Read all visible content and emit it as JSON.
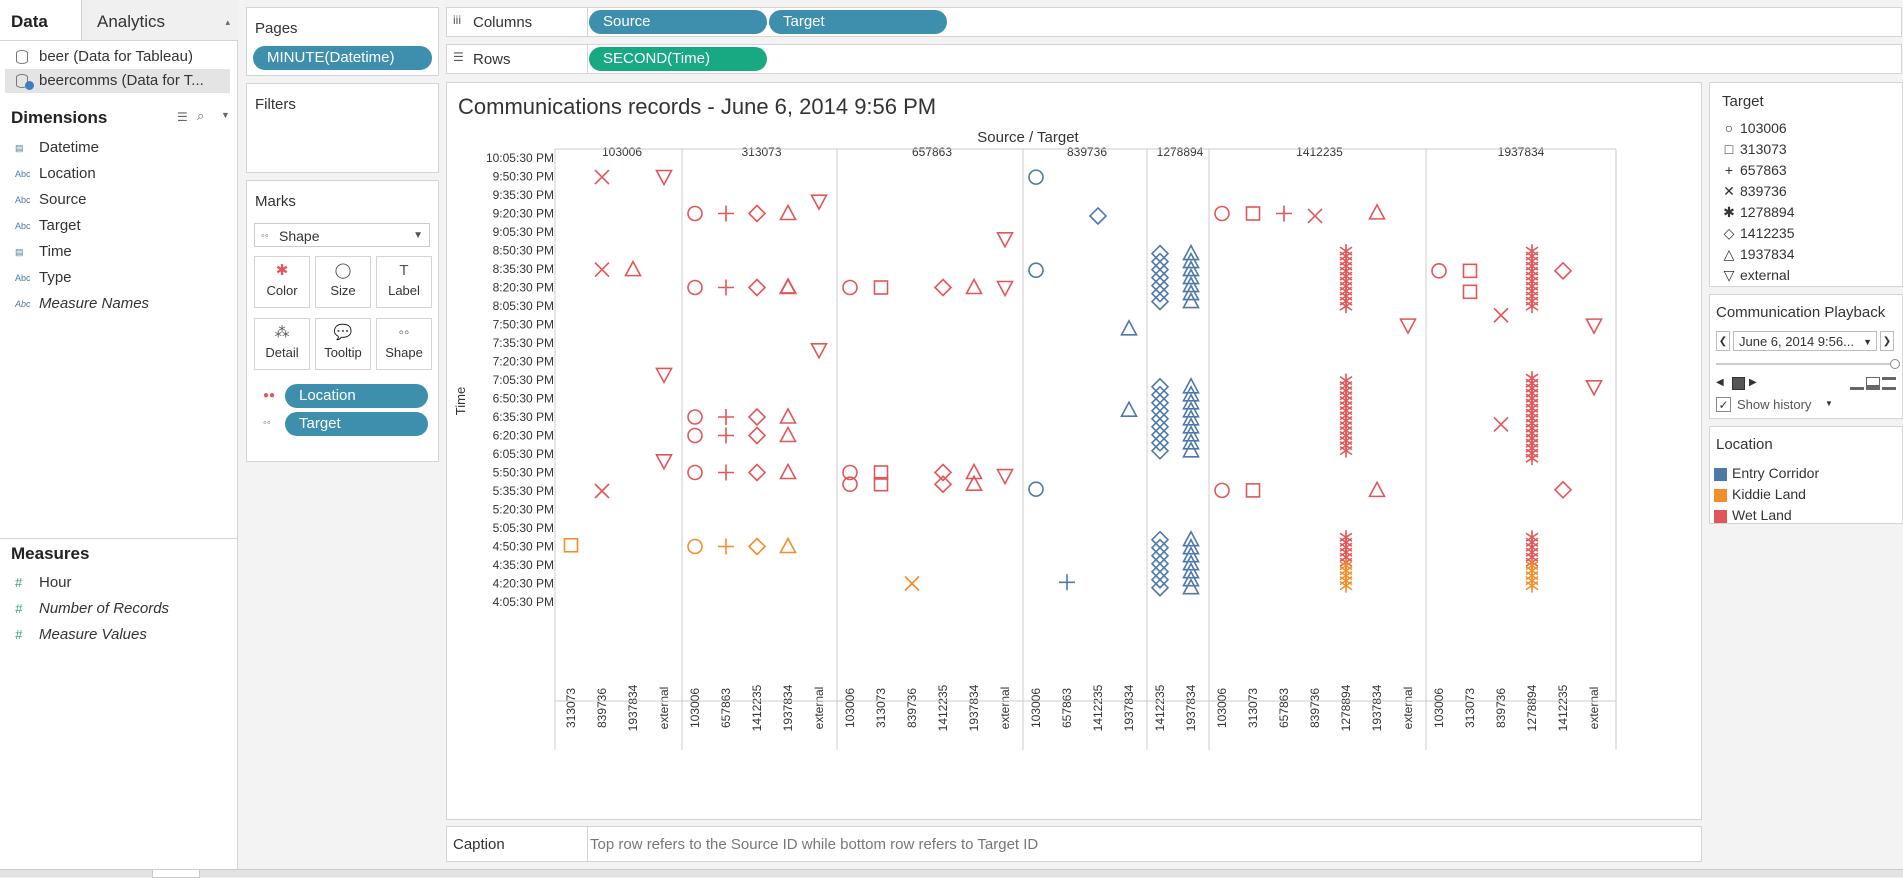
{
  "tabs": {
    "data": "Data",
    "analytics": "Analytics"
  },
  "datasources": [
    "beer (Data for Tableau)",
    "beercomms (Data for T..."
  ],
  "dimensions": {
    "title": "Dimensions",
    "items": [
      {
        "label": "Datetime",
        "type": "date",
        "italic": false
      },
      {
        "label": "Location",
        "type": "abc",
        "italic": false
      },
      {
        "label": "Source",
        "type": "abc",
        "italic": false
      },
      {
        "label": "Target",
        "type": "abc",
        "italic": false
      },
      {
        "label": "Time",
        "type": "date",
        "italic": false
      },
      {
        "label": "Type",
        "type": "abc",
        "italic": false
      },
      {
        "label": "Measure Names",
        "type": "abc",
        "italic": true
      }
    ]
  },
  "measures": {
    "title": "Measures",
    "items": [
      {
        "label": "Hour",
        "italic": false
      },
      {
        "label": "Number of Records",
        "italic": true
      },
      {
        "label": "Measure Values",
        "italic": true
      }
    ]
  },
  "pages": {
    "title": "Pages",
    "pill": "MINUTE(Datetime)"
  },
  "filters": {
    "title": "Filters"
  },
  "marks": {
    "title": "Marks",
    "type": "Shape",
    "buttons": [
      "Color",
      "Size",
      "Label",
      "Detail",
      "Tooltip",
      "Shape"
    ],
    "pills": [
      "Location",
      "Target"
    ]
  },
  "columns": {
    "label": "Columns",
    "pills": [
      "Source",
      "Target"
    ]
  },
  "rows": {
    "label": "Rows",
    "pills": [
      "SECOND(Time)"
    ]
  },
  "chart_data": {
    "type": "scatter",
    "title": "Communications records - June 6, 2014 9:56 PM",
    "column_header": "Source / Target",
    "ylabel": "Time",
    "y_ticks": [
      "10:05:30 PM",
      "9:50:30 PM",
      "9:35:30 PM",
      "9:20:30 PM",
      "9:05:30 PM",
      "8:50:30 PM",
      "8:35:30 PM",
      "8:20:30 PM",
      "8:05:30 PM",
      "7:50:30 PM",
      "7:35:30 PM",
      "7:20:30 PM",
      "7:05:30 PM",
      "6:50:30 PM",
      "6:35:30 PM",
      "6:20:30 PM",
      "6:05:30 PM",
      "5:50:30 PM",
      "5:35:30 PM",
      "5:20:30 PM",
      "5:05:30 PM",
      "4:50:30 PM",
      "4:35:30 PM",
      "4:20:30 PM",
      "4:05:30 PM"
    ],
    "sources": [
      {
        "name": "103006",
        "targets": [
          "313073",
          "839736",
          "1937834",
          "external"
        ]
      },
      {
        "name": "313073",
        "targets": [
          "103006",
          "657863",
          "1412235",
          "1937834",
          "external"
        ]
      },
      {
        "name": "657863",
        "targets": [
          "103006",
          "313073",
          "839736",
          "1412235",
          "1937834",
          "external"
        ]
      },
      {
        "name": "839736",
        "targets": [
          "103006",
          "657863",
          "1412235",
          "1937834"
        ]
      },
      {
        "name": "1278894",
        "targets": [
          "1412235",
          "1937834"
        ]
      },
      {
        "name": "1412235",
        "targets": [
          "103006",
          "313073",
          "657863",
          "839736",
          "1278894",
          "1937834",
          "external"
        ]
      },
      {
        "name": "1937834",
        "targets": [
          "103006",
          "313073",
          "839736",
          "1278894",
          "1412235",
          "external"
        ]
      }
    ],
    "shapes": {
      "103006": "circle",
      "313073": "square",
      "657863": "plus",
      "839736": "cross",
      "1278894": "asterisk",
      "1412235": "diamond",
      "1937834": "triangle",
      "external": "triangle-down"
    },
    "location_colors": {
      "Entry Corridor": "#4e79a7",
      "Kiddie Land": "#f28e2b",
      "Wet Land": "#e15759"
    },
    "points": [
      {
        "s": "103006",
        "t": "313073",
        "time": "4:51:30 PM",
        "loc": "Kiddie Land"
      },
      {
        "s": "103006",
        "t": "839736",
        "time": "9:50:00 PM",
        "loc": "Wet Land"
      },
      {
        "s": "103006",
        "t": "839736",
        "time": "8:35:00 PM",
        "loc": "Wet Land"
      },
      {
        "s": "103006",
        "t": "839736",
        "time": "5:35:30 PM",
        "loc": "Wet Land"
      },
      {
        "s": "103006",
        "t": "1937834",
        "time": "8:35:00 PM",
        "loc": "Wet Land"
      },
      {
        "s": "103006",
        "t": "external",
        "time": "9:50:30 PM",
        "loc": "Wet Land"
      },
      {
        "s": "103006",
        "t": "external",
        "time": "7:10:00 PM",
        "loc": "Wet Land"
      },
      {
        "s": "103006",
        "t": "external",
        "time": "6:00:00 PM",
        "loc": "Wet Land"
      },
      {
        "s": "313073",
        "t": "103006",
        "time": "9:20:30 PM",
        "loc": "Wet Land"
      },
      {
        "s": "313073",
        "t": "103006",
        "time": "8:20:30 PM",
        "loc": "Wet Land"
      },
      {
        "s": "313073",
        "t": "103006",
        "time": "6:35:30 PM",
        "loc": "Wet Land"
      },
      {
        "s": "313073",
        "t": "103006",
        "time": "6:20:30 PM",
        "loc": "Wet Land"
      },
      {
        "s": "313073",
        "t": "103006",
        "time": "5:50:30 PM",
        "loc": "Wet Land"
      },
      {
        "s": "313073",
        "t": "103006",
        "time": "4:50:30 PM",
        "loc": "Kiddie Land"
      },
      {
        "s": "313073",
        "t": "657863",
        "time": "9:20:30 PM",
        "loc": "Wet Land"
      },
      {
        "s": "313073",
        "t": "657863",
        "time": "8:20:30 PM",
        "loc": "Wet Land"
      },
      {
        "s": "313073",
        "t": "657863",
        "time": "6:35:30 PM",
        "loc": "Wet Land"
      },
      {
        "s": "313073",
        "t": "657863",
        "time": "6:20:30 PM",
        "loc": "Wet Land"
      },
      {
        "s": "313073",
        "t": "657863",
        "time": "5:50:30 PM",
        "loc": "Wet Land"
      },
      {
        "s": "313073",
        "t": "657863",
        "time": "4:50:30 PM",
        "loc": "Kiddie Land"
      },
      {
        "s": "313073",
        "t": "1412235",
        "time": "9:20:30 PM",
        "loc": "Wet Land"
      },
      {
        "s": "313073",
        "t": "1412235",
        "time": "8:20:30 PM",
        "loc": "Wet Land"
      },
      {
        "s": "313073",
        "t": "1412235",
        "time": "6:35:30 PM",
        "loc": "Wet Land"
      },
      {
        "s": "313073",
        "t": "1412235",
        "time": "6:20:30 PM",
        "loc": "Wet Land"
      },
      {
        "s": "313073",
        "t": "1412235",
        "time": "5:50:30 PM",
        "loc": "Wet Land"
      },
      {
        "s": "313073",
        "t": "1412235",
        "time": "4:50:30 PM",
        "loc": "Kiddie Land"
      },
      {
        "s": "313073",
        "t": "1937834",
        "time": "9:20:30 PM",
        "loc": "Wet Land"
      },
      {
        "s": "313073",
        "t": "1937834",
        "time": "8:21:00 PM",
        "loc": "Wet Land"
      },
      {
        "s": "313073",
        "t": "1937834",
        "time": "8:20:30 PM",
        "loc": "Wet Land"
      },
      {
        "s": "313073",
        "t": "1937834",
        "time": "6:35:30 PM",
        "loc": "Wet Land"
      },
      {
        "s": "313073",
        "t": "1937834",
        "time": "6:20:30 PM",
        "loc": "Wet Land"
      },
      {
        "s": "313073",
        "t": "1937834",
        "time": "5:50:30 PM",
        "loc": "Wet Land"
      },
      {
        "s": "313073",
        "t": "1937834",
        "time": "4:50:30 PM",
        "loc": "Kiddie Land"
      },
      {
        "s": "313073",
        "t": "external",
        "time": "9:30:30 PM",
        "loc": "Wet Land"
      },
      {
        "s": "313073",
        "t": "external",
        "time": "7:30:00 PM",
        "loc": "Wet Land"
      },
      {
        "s": "657863",
        "t": "103006",
        "time": "8:20:30 PM",
        "loc": "Wet Land"
      },
      {
        "s": "657863",
        "t": "103006",
        "time": "5:50:30 PM",
        "loc": "Wet Land"
      },
      {
        "s": "657863",
        "t": "103006",
        "time": "5:41:00 PM",
        "loc": "Wet Land"
      },
      {
        "s": "657863",
        "t": "313073",
        "time": "8:20:30 PM",
        "loc": "Wet Land"
      },
      {
        "s": "657863",
        "t": "313073",
        "time": "5:50:30 PM",
        "loc": "Wet Land"
      },
      {
        "s": "657863",
        "t": "313073",
        "time": "5:41:00 PM",
        "loc": "Wet Land"
      },
      {
        "s": "657863",
        "t": "839736",
        "time": "4:20:30 PM",
        "loc": "Kiddie Land"
      },
      {
        "s": "657863",
        "t": "1412235",
        "time": "8:20:30 PM",
        "loc": "Wet Land"
      },
      {
        "s": "657863",
        "t": "1412235",
        "time": "5:50:30 PM",
        "loc": "Wet Land"
      },
      {
        "s": "657863",
        "t": "1412235",
        "time": "5:41:00 PM",
        "loc": "Wet Land"
      },
      {
        "s": "657863",
        "t": "1937834",
        "time": "8:20:30 PM",
        "loc": "Wet Land"
      },
      {
        "s": "657863",
        "t": "1937834",
        "time": "5:50:30 PM",
        "loc": "Wet Land"
      },
      {
        "s": "657863",
        "t": "1937834",
        "time": "5:41:00 PM",
        "loc": "Wet Land"
      },
      {
        "s": "657863",
        "t": "external",
        "time": "9:00:00 PM",
        "loc": "Wet Land"
      },
      {
        "s": "657863",
        "t": "external",
        "time": "8:20:30 PM",
        "loc": "Wet Land"
      },
      {
        "s": "657863",
        "t": "external",
        "time": "5:48:00 PM",
        "loc": "Wet Land"
      },
      {
        "s": "839736",
        "t": "103006",
        "time": "9:50:00 PM",
        "loc": "Entry Corridor"
      },
      {
        "s": "839736",
        "t": "103006",
        "time": "8:34:30 PM",
        "loc": "Entry Corridor"
      },
      {
        "s": "839736",
        "t": "103006",
        "time": "5:37:00 PM",
        "loc": "Entry Corridor"
      },
      {
        "s": "839736",
        "t": "657863",
        "time": "4:21:30 PM",
        "loc": "Entry Corridor"
      },
      {
        "s": "839736",
        "t": "1412235",
        "time": "9:18:30 PM",
        "loc": "Entry Corridor"
      },
      {
        "s": "839736",
        "t": "1937834",
        "time": "7:47:00 PM",
        "loc": "Entry Corridor"
      },
      {
        "s": "839736",
        "t": "1937834",
        "time": "6:41:00 PM",
        "loc": "Entry Corridor"
      },
      {
        "s": "1278894",
        "t": "1412235",
        "time": "8:08:00 PM to 8:48:00 PM",
        "loc": "Entry Corridor"
      },
      {
        "s": "1278894",
        "t": "1412235",
        "time": "6:06:00 PM to 7:00:00 PM",
        "loc": "Entry Corridor"
      },
      {
        "s": "1278894",
        "t": "1412235",
        "time": "4:17:00 PM to 4:56:00 PM",
        "loc": "Entry Corridor"
      },
      {
        "s": "1278894",
        "t": "1937834",
        "time": "8:08:00 PM to 8:48:00 PM",
        "loc": "Entry Corridor"
      },
      {
        "s": "1278894",
        "t": "1937834",
        "time": "6:06:00 PM to 7:00:00 PM",
        "loc": "Entry Corridor"
      },
      {
        "s": "1278894",
        "t": "1937834",
        "time": "4:17:00 PM to 4:56:00 PM",
        "loc": "Entry Corridor"
      },
      {
        "s": "1412235",
        "t": "103006",
        "time": "9:20:30 PM",
        "loc": "Wet Land"
      },
      {
        "s": "1412235",
        "t": "103006",
        "time": "5:36:00 PM",
        "loc": "Wet Land"
      },
      {
        "s": "1412235",
        "t": "313073",
        "time": "9:20:30 PM",
        "loc": "Wet Land"
      },
      {
        "s": "1412235",
        "t": "313073",
        "time": "5:36:00 PM",
        "loc": "Wet Land"
      },
      {
        "s": "1412235",
        "t": "657863",
        "time": "9:20:30 PM",
        "loc": "Wet Land"
      },
      {
        "s": "1412235",
        "t": "839736",
        "time": "9:18:30 PM",
        "loc": "Wet Land"
      },
      {
        "s": "1412235",
        "t": "1278894",
        "time": "8:03:00 PM to 8:50:00 PM",
        "loc": "Wet Land"
      },
      {
        "s": "1412235",
        "t": "1278894",
        "time": "6:05:00 PM to 7:05:00 PM",
        "loc": "Wet Land"
      },
      {
        "s": "1412235",
        "t": "1278894",
        "time": "4:35:00 PM to 4:58:00 PM",
        "loc": "Wet Land"
      },
      {
        "s": "1412235",
        "t": "1278894",
        "time": "4:18:00 PM to 4:35:00 PM",
        "loc": "Kiddie Land"
      },
      {
        "s": "1412235",
        "t": "1937834",
        "time": "9:21:00 PM",
        "loc": "Wet Land"
      },
      {
        "s": "1412235",
        "t": "1937834",
        "time": "5:36:00 PM",
        "loc": "Wet Land"
      },
      {
        "s": "1412235",
        "t": "external",
        "time": "7:50:00 PM",
        "loc": "Wet Land"
      },
      {
        "s": "1937834",
        "t": "103006",
        "time": "8:34:00 PM",
        "loc": "Wet Land"
      },
      {
        "s": "1937834",
        "t": "313073",
        "time": "8:34:00 PM",
        "loc": "Wet Land"
      },
      {
        "s": "1937834",
        "t": "313073",
        "time": "8:17:00 PM",
        "loc": "Wet Land"
      },
      {
        "s": "1937834",
        "t": "839736",
        "time": "7:58:00 PM",
        "loc": "Wet Land"
      },
      {
        "s": "1937834",
        "t": "839736",
        "time": "6:29:30 PM",
        "loc": "Wet Land"
      },
      {
        "s": "1937834",
        "t": "1278894",
        "time": "8:03:00 PM to 8:50:00 PM",
        "loc": "Wet Land"
      },
      {
        "s": "1937834",
        "t": "1278894",
        "time": "6:00:00 PM to 7:07:00 PM",
        "loc": "Wet Land"
      },
      {
        "s": "1937834",
        "t": "1278894",
        "time": "4:35:00 PM to 4:58:00 PM",
        "loc": "Wet Land"
      },
      {
        "s": "1937834",
        "t": "1278894",
        "time": "4:18:00 PM to 4:35:00 PM",
        "loc": "Kiddie Land"
      },
      {
        "s": "1937834",
        "t": "1412235",
        "time": "8:34:00 PM",
        "loc": "Wet Land"
      },
      {
        "s": "1937834",
        "t": "1412235",
        "time": "5:36:30 PM",
        "loc": "Wet Land"
      },
      {
        "s": "1937834",
        "t": "external",
        "time": "7:50:00 PM",
        "loc": "Wet Land"
      },
      {
        "s": "1937834",
        "t": "external",
        "time": "7:00:00 PM",
        "loc": "Wet Land"
      }
    ]
  },
  "target_legend": {
    "title": "Target",
    "items": [
      "103006",
      "313073",
      "657863",
      "839736",
      "1278894",
      "1412235",
      "1937834",
      "external"
    ]
  },
  "playback": {
    "title": "Communication Playback",
    "value": "June 6, 2014 9:56...",
    "show_history": "Show history"
  },
  "location_legend": {
    "title": "Location",
    "items": [
      {
        "label": "Entry Corridor",
        "color": "#4e79a7"
      },
      {
        "label": "Kiddie Land",
        "color": "#f28e2b"
      },
      {
        "label": "Wet Land",
        "color": "#e15759"
      }
    ]
  },
  "caption": {
    "label": "Caption",
    "text": "Top row refers to the Source ID while bottom row refers to Target ID"
  }
}
